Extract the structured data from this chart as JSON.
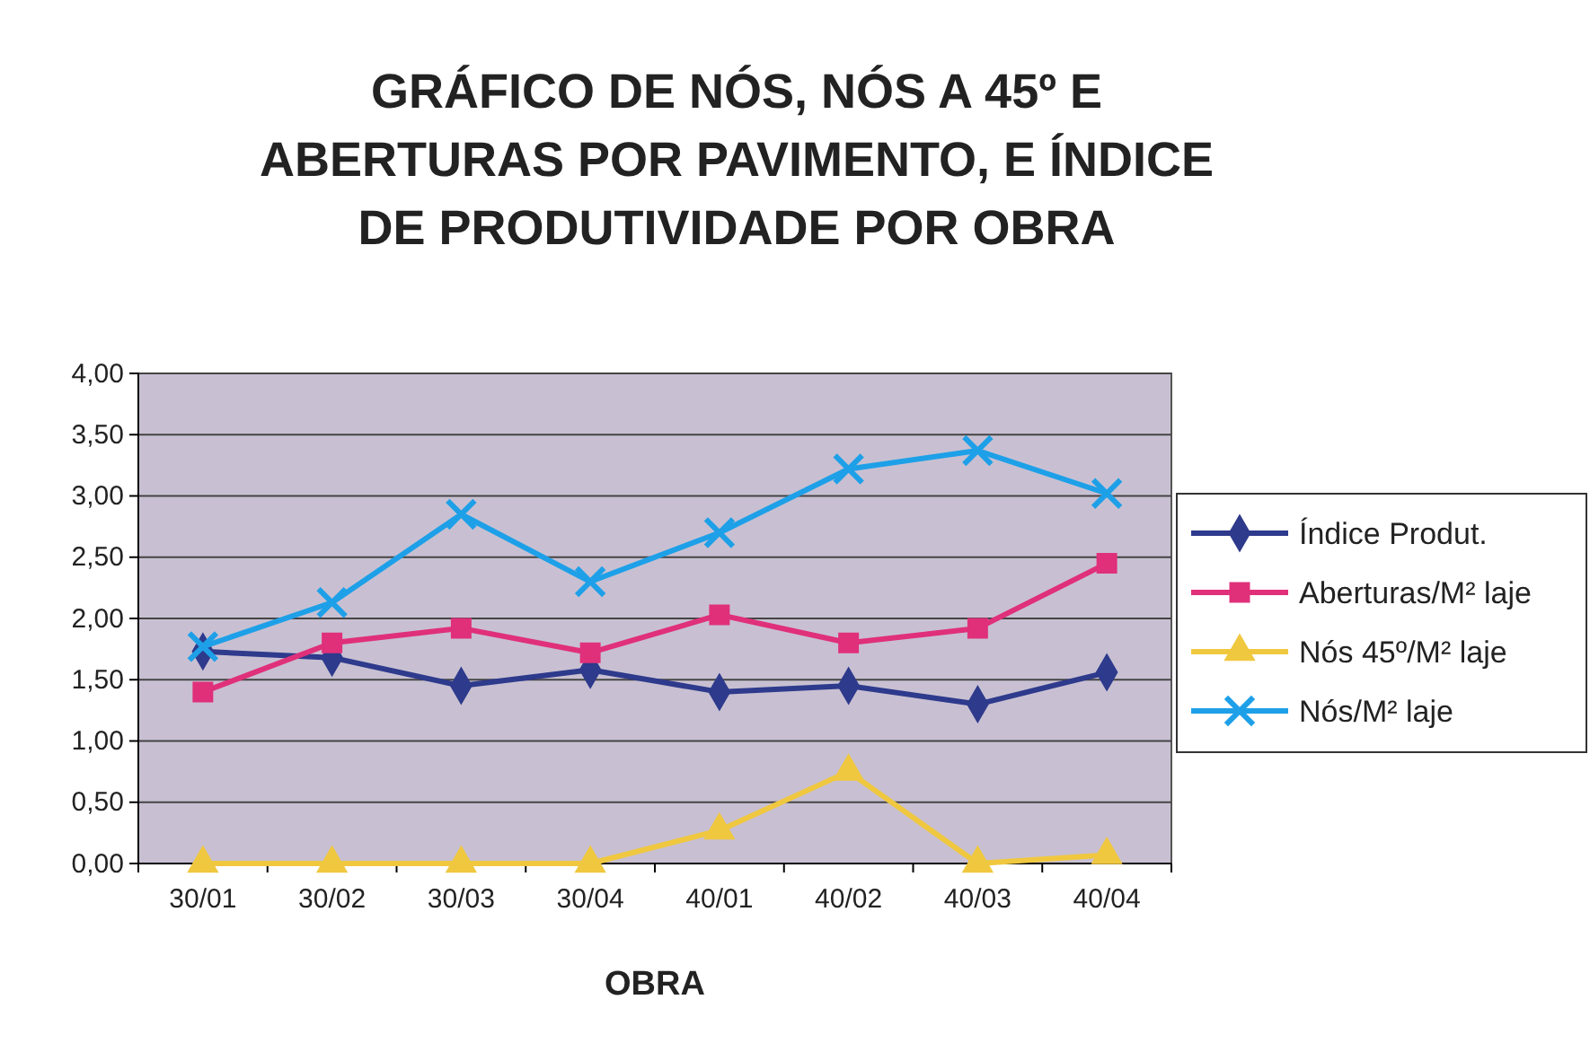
{
  "chart_data": {
    "type": "line",
    "title": "GRÁFICO DE NÓS, NÓS A 45º E ABERTURAS POR PAVIMENTO, E ÍNDICE DE PRODUTIVIDADE POR OBRA",
    "xlabel": "OBRA",
    "categories": [
      "30/01",
      "30/02",
      "30/03",
      "30/04",
      "40/01",
      "40/02",
      "40/03",
      "40/04"
    ],
    "series": [
      {
        "name": "Índice Produt.",
        "color": "#2e3a8c",
        "marker": "diamond",
        "values": [
          1.73,
          1.68,
          1.45,
          1.58,
          1.4,
          1.45,
          1.3,
          1.56
        ]
      },
      {
        "name": "Aberturas/M² laje",
        "color": "#e0307a",
        "marker": "square",
        "values": [
          1.4,
          1.8,
          1.92,
          1.72,
          2.03,
          1.8,
          1.92,
          2.45
        ]
      },
      {
        "name": "Nós 45º/M² laje",
        "color": "#f0c840",
        "marker": "triangle",
        "values": [
          0,
          0,
          0,
          0,
          0.27,
          0.75,
          0,
          0.07
        ]
      },
      {
        "name": "Nós/M² laje",
        "color": "#1ea0e8",
        "marker": "cross",
        "values": [
          1.77,
          2.13,
          2.85,
          2.3,
          2.7,
          3.22,
          3.37,
          3.02
        ]
      }
    ],
    "ylim": [
      0,
      4
    ],
    "yticks": [
      {
        "value": 0,
        "label": "0,00"
      },
      {
        "value": 0.5,
        "label": "0,50"
      },
      {
        "value": 1,
        "label": "1,00"
      },
      {
        "value": 1.5,
        "label": "1,50"
      },
      {
        "value": 2,
        "label": "2,00"
      },
      {
        "value": 2.5,
        "label": "2,50"
      },
      {
        "value": 3,
        "label": "3,00"
      },
      {
        "value": 3.5,
        "label": "3,50"
      },
      {
        "value": 4,
        "label": "4,00"
      }
    ],
    "grid": "y",
    "legend": "right"
  }
}
